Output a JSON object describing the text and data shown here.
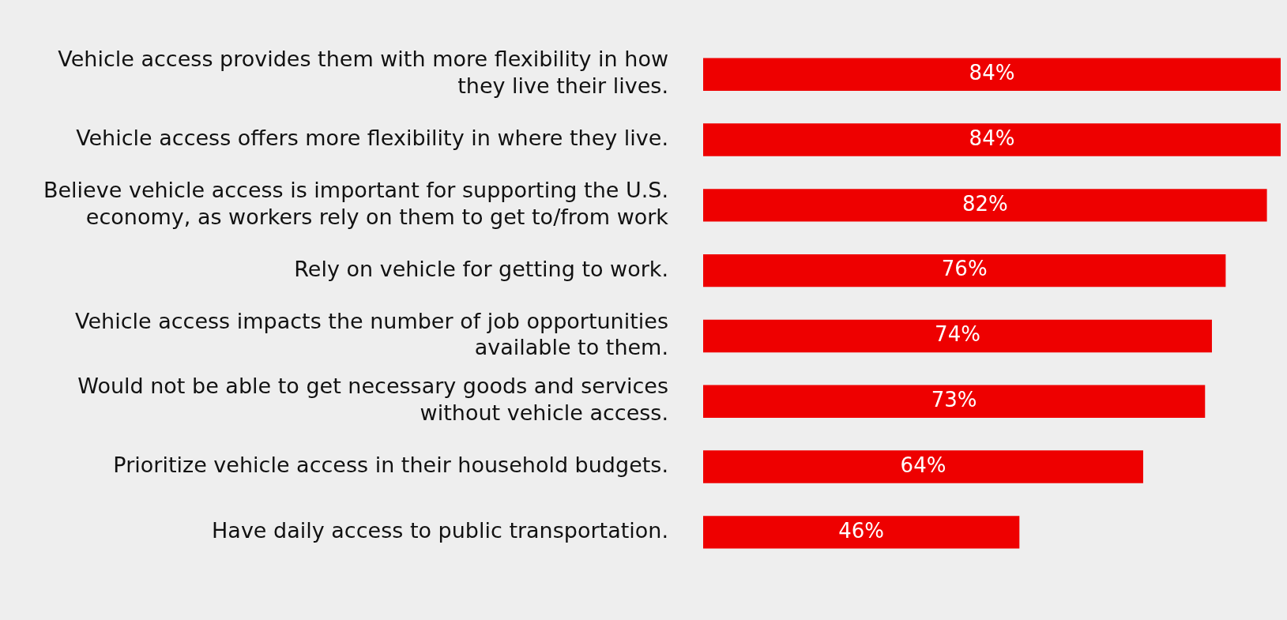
{
  "chart_data": {
    "type": "bar",
    "orientation": "horizontal",
    "categories": [
      "Vehicle access provides them with more flexibility in how they live their lives.",
      "Vehicle access offers more flexibility in where they live.",
      "Believe vehicle access is important for supporting the U.S. economy, as workers rely on them to get to/from work",
      "Rely on vehicle for getting to work.",
      "Vehicle access impacts the number of job opportunities available to them.",
      "Would not be able to get necessary goods and services without vehicle access.",
      "Prioritize vehicle access in their household budgets.",
      "Have daily access to public transportation."
    ],
    "values": [
      84,
      84,
      82,
      76,
      74,
      73,
      64,
      46
    ],
    "value_labels": [
      "84%",
      "84%",
      "82%",
      "76%",
      "74%",
      "73%",
      "64%",
      "46%"
    ],
    "color": "#ee0000",
    "xlim": [
      0,
      84
    ],
    "legend": false
  }
}
